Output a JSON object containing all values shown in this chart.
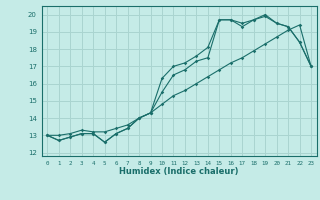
{
  "xlabel": "Humidex (Indice chaleur)",
  "ylabel": "",
  "bg_color": "#c5ebe7",
  "grid_color": "#aad4d0",
  "line_color": "#1a6e6a",
  "xlim": [
    -0.5,
    23.5
  ],
  "ylim": [
    11.8,
    20.5
  ],
  "xticks": [
    0,
    1,
    2,
    3,
    4,
    5,
    6,
    7,
    8,
    9,
    10,
    11,
    12,
    13,
    14,
    15,
    16,
    17,
    18,
    19,
    20,
    21,
    22,
    23
  ],
  "yticks": [
    12,
    13,
    14,
    15,
    16,
    17,
    18,
    19,
    20
  ],
  "series": [
    [
      13.0,
      12.7,
      12.9,
      13.1,
      13.1,
      12.6,
      13.1,
      13.4,
      14.0,
      14.3,
      16.3,
      17.0,
      17.2,
      17.6,
      18.1,
      19.7,
      19.7,
      19.5,
      19.7,
      20.0,
      19.5,
      19.3,
      18.4,
      17.0
    ],
    [
      13.0,
      12.7,
      12.9,
      13.1,
      13.1,
      12.6,
      13.1,
      13.4,
      14.0,
      14.3,
      15.5,
      16.5,
      16.8,
      17.3,
      17.5,
      19.7,
      19.7,
      19.3,
      19.7,
      19.9,
      19.5,
      19.3,
      18.4,
      17.0
    ],
    [
      13.0,
      13.0,
      13.1,
      13.3,
      13.2,
      13.2,
      13.4,
      13.6,
      14.0,
      14.3,
      14.8,
      15.3,
      15.6,
      16.0,
      16.4,
      16.8,
      17.2,
      17.5,
      17.9,
      18.3,
      18.7,
      19.1,
      19.4,
      17.0
    ]
  ]
}
